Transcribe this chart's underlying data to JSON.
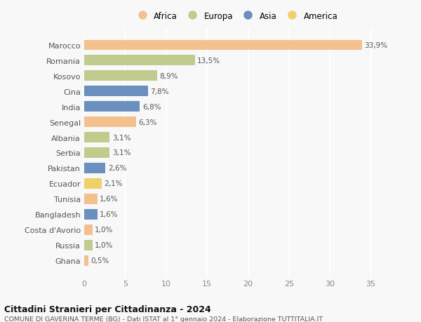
{
  "countries": [
    "Marocco",
    "Romania",
    "Kosovo",
    "Cina",
    "India",
    "Senegal",
    "Albania",
    "Serbia",
    "Pakistan",
    "Ecuador",
    "Tunisia",
    "Bangladesh",
    "Costa d'Avorio",
    "Russia",
    "Ghana"
  ],
  "values": [
    33.9,
    13.5,
    8.9,
    7.8,
    6.8,
    6.3,
    3.1,
    3.1,
    2.6,
    2.1,
    1.6,
    1.6,
    1.0,
    1.0,
    0.5
  ],
  "labels": [
    "33,9%",
    "13,5%",
    "8,9%",
    "7,8%",
    "6,8%",
    "6,3%",
    "3,1%",
    "3,1%",
    "2,6%",
    "2,1%",
    "1,6%",
    "1,6%",
    "1,0%",
    "1,0%",
    "0,5%"
  ],
  "continents": [
    "Africa",
    "Europa",
    "Europa",
    "Asia",
    "Asia",
    "Africa",
    "Europa",
    "Europa",
    "Asia",
    "America",
    "Africa",
    "Asia",
    "Africa",
    "Europa",
    "Africa"
  ],
  "colors": {
    "Africa": "#F2C18D",
    "Europa": "#BFCC8E",
    "Asia": "#6B8FBF",
    "America": "#F0D068"
  },
  "xlim": [
    0,
    37
  ],
  "xticks": [
    0,
    5,
    10,
    15,
    20,
    25,
    30,
    35
  ],
  "title": "Cittadini Stranieri per Cittadinanza - 2024",
  "subtitle": "COMUNE DI GAVERINA TERME (BG) - Dati ISTAT al 1° gennaio 2024 - Elaborazione TUTTITALIA.IT",
  "background_color": "#f8f8f8",
  "grid_color": "#ffffff",
  "bar_height": 0.65,
  "legend_order": [
    "Africa",
    "Europa",
    "Asia",
    "America"
  ]
}
